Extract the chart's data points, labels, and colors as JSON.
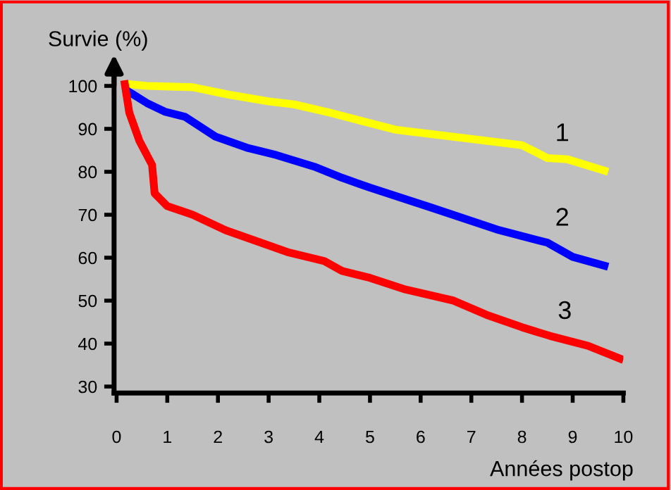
{
  "chart_data": {
    "type": "line",
    "xlabel": "Années postop",
    "ylabel": "Survie (%)",
    "xlim": [
      -0.05,
      10
    ],
    "ylim": [
      28.5,
      103
    ],
    "xticks": [
      0,
      1,
      2,
      3,
      4,
      5,
      6,
      7,
      8,
      9,
      10
    ],
    "yticks": [
      30,
      40,
      50,
      60,
      70,
      80,
      90,
      100
    ],
    "grid": false,
    "legend": false,
    "marker": "none",
    "line_style": "solid",
    "series": [
      {
        "name": "1",
        "color": "#ffff00",
        "x": [
          0.15,
          0.6,
          1.5,
          2.2,
          3.0,
          3.5,
          4.2,
          5.5,
          6.9,
          8.0,
          8.5,
          8.9,
          9.7
        ],
        "values": [
          100.5,
          100,
          99.7,
          98,
          96.4,
          95.7,
          93.8,
          89.8,
          87.8,
          86.2,
          83.2,
          82.9,
          80
        ]
      },
      {
        "name": "2",
        "color": "#0000ff",
        "x": [
          0.15,
          0.6,
          0.95,
          1.35,
          1.95,
          2.6,
          3.15,
          3.9,
          4.45,
          5.0,
          6.2,
          7.55,
          8.5,
          9.0,
          9.7
        ],
        "values": [
          99.3,
          96,
          94,
          92.8,
          88.2,
          85.5,
          83.9,
          81.2,
          78.6,
          76.3,
          71.7,
          66.4,
          63.5,
          60.2,
          57.9
        ]
      },
      {
        "name": "3",
        "color": "#ff0000",
        "x": [
          0.15,
          0.25,
          0.45,
          0.7,
          0.75,
          1.0,
          1.5,
          2.15,
          2.85,
          3.4,
          4.1,
          4.45,
          5.0,
          5.7,
          6.65,
          7.3,
          8.0,
          8.55,
          9.3,
          10.0
        ],
        "values": [
          101.3,
          93.8,
          87.2,
          81.6,
          75,
          72,
          70,
          66.4,
          63.5,
          61.2,
          59.2,
          56.9,
          55.3,
          52.6,
          50,
          46.7,
          43.8,
          41.8,
          39.5,
          36.2
        ]
      }
    ]
  }
}
